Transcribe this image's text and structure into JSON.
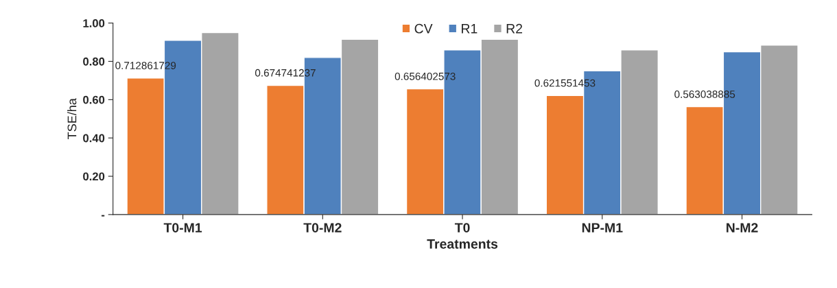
{
  "chart_data": {
    "type": "bar",
    "xlabel": "Treatments",
    "ylabel": "TSE/ha",
    "categories": [
      "T0-M1",
      "T0-M2",
      "T0",
      "NP-M1",
      "N-M2"
    ],
    "series": [
      {
        "name": "CV",
        "color": "#ed7d31",
        "values": [
          0.712861729,
          0.674741237,
          0.656402573,
          0.621551453,
          0.563038885
        ],
        "value_labels": [
          "0.712861729",
          "0.674741237",
          "0.656402573",
          "0.621551453",
          "0.563038885"
        ]
      },
      {
        "name": "R1",
        "color": "#4f81bd",
        "values": [
          0.91,
          0.82,
          0.86,
          0.75,
          0.85
        ]
      },
      {
        "name": "R2",
        "color": "#a5a5a5",
        "values": [
          0.95,
          0.915,
          0.915,
          0.86,
          0.885
        ]
      }
    ],
    "ylim": [
      0,
      1.0
    ],
    "yticks": [
      {
        "value": 0,
        "label": "-"
      },
      {
        "value": 0.2,
        "label": "0.20"
      },
      {
        "value": 0.4,
        "label": "0.40"
      },
      {
        "value": 0.6,
        "label": "0.60"
      },
      {
        "value": 0.8,
        "label": "0.80"
      },
      {
        "value": 1.0,
        "label": "1.00"
      }
    ],
    "grid": false,
    "legend": "top"
  }
}
